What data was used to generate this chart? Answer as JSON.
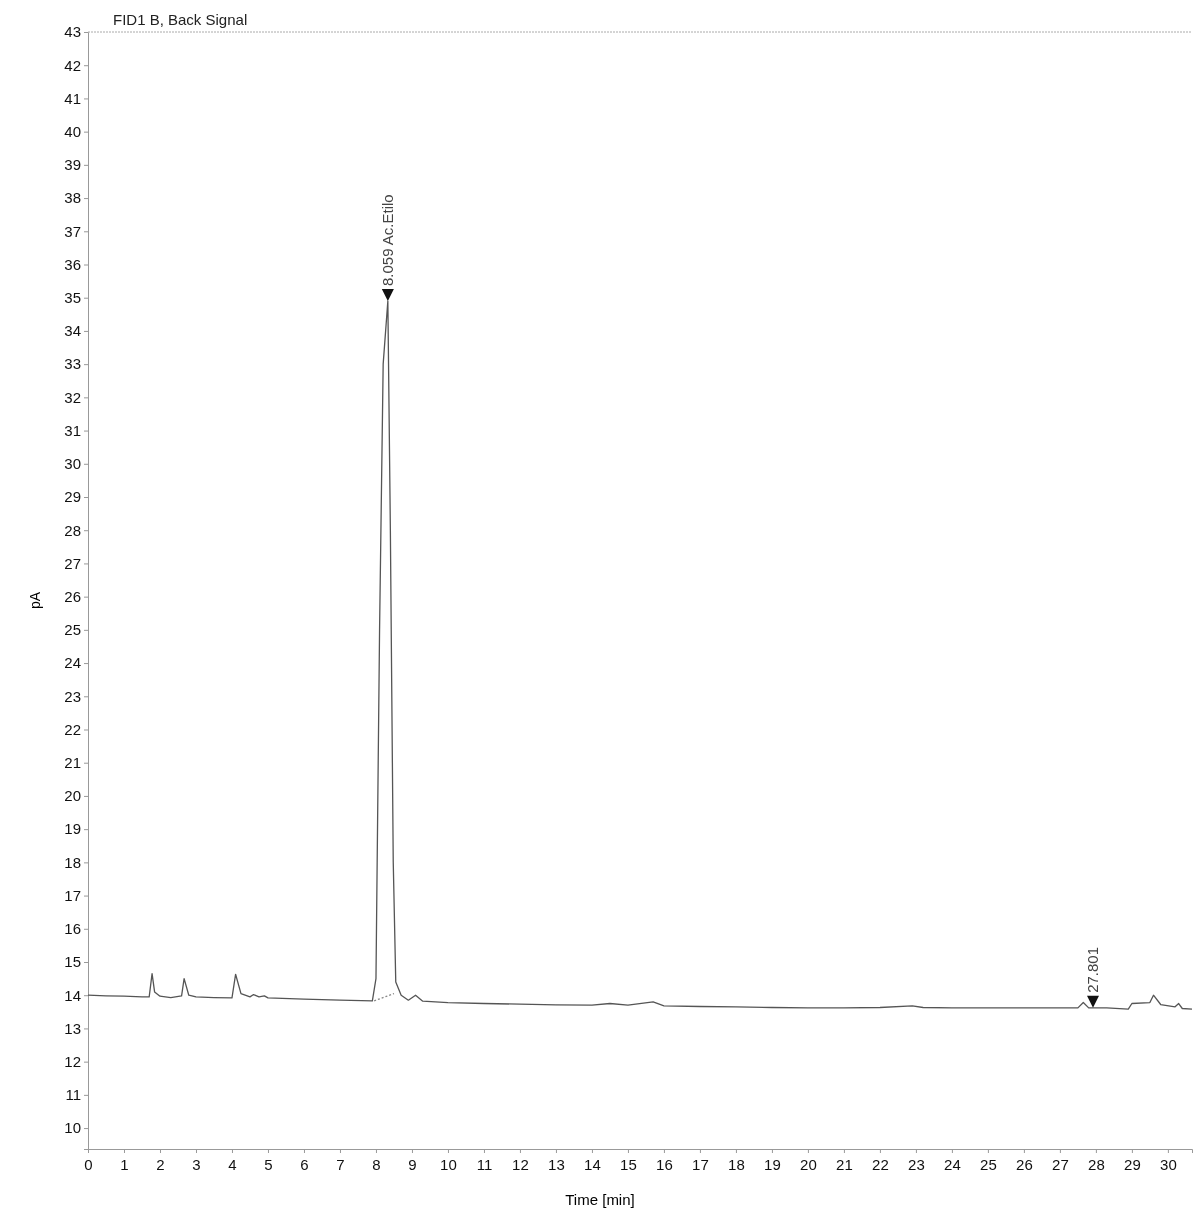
{
  "chart_data": {
    "type": "line",
    "title": "FID1 B, Back Signal",
    "xlabel": "Time [min]",
    "ylabel": "pA",
    "xlim": [
      0,
      30.67
    ],
    "ylim": [
      9.37,
      43
    ],
    "xticks": [
      0,
      1,
      2,
      3,
      4,
      5,
      6,
      7,
      8,
      9,
      10,
      11,
      12,
      13,
      14,
      15,
      16,
      17,
      18,
      19,
      20,
      21,
      22,
      23,
      24,
      25,
      26,
      27,
      28,
      29,
      30
    ],
    "yticks": [
      10,
      11,
      12,
      13,
      14,
      15,
      16,
      17,
      18,
      19,
      20,
      21,
      22,
      23,
      24,
      25,
      26,
      27,
      28,
      29,
      30,
      31,
      32,
      33,
      34,
      35,
      36,
      37,
      38,
      39,
      40,
      41,
      42,
      43
    ],
    "grid": false,
    "series": [
      {
        "color": "#555555",
        "line_style": "solid",
        "x": [
          0,
          0.5,
          1.0,
          1.5,
          1.7,
          1.78,
          1.85,
          2.0,
          2.3,
          2.6,
          2.67,
          2.8,
          3.0,
          3.5,
          4.0,
          4.1,
          4.25,
          4.5,
          4.6,
          4.75,
          4.9,
          5.0,
          6.0,
          7.0,
          7.9,
          8.0,
          8.1,
          8.2,
          8.33,
          8.4,
          8.48,
          8.55,
          8.7,
          8.9,
          9.1,
          9.3,
          10,
          11,
          12,
          13,
          14,
          14.5,
          15,
          15.7,
          16,
          17,
          18,
          19,
          20,
          21,
          22,
          22.9,
          23.2,
          24,
          25,
          26,
          27,
          27.5,
          27.65,
          27.8,
          28.3,
          28.9,
          29.0,
          29.5,
          29.6,
          29.8,
          30.2,
          30.3,
          30.4,
          30.67
        ],
        "values": [
          14.0,
          13.98,
          13.97,
          13.95,
          13.95,
          14.65,
          14.1,
          13.97,
          13.93,
          13.98,
          14.5,
          14.0,
          13.95,
          13.93,
          13.92,
          14.63,
          14.05,
          13.95,
          14.02,
          13.95,
          13.98,
          13.92,
          13.88,
          13.85,
          13.83,
          14.5,
          25,
          33,
          34.9,
          28,
          18,
          14.4,
          14.0,
          13.85,
          14.0,
          13.82,
          13.78,
          13.75,
          13.73,
          13.71,
          13.7,
          13.75,
          13.7,
          13.8,
          13.68,
          13.66,
          13.65,
          13.63,
          13.62,
          13.62,
          13.63,
          13.68,
          13.63,
          13.62,
          13.62,
          13.62,
          13.62,
          13.62,
          13.78,
          13.62,
          13.62,
          13.58,
          13.75,
          13.78,
          14.0,
          13.72,
          13.65,
          13.75,
          13.6,
          13.58
        ]
      },
      {
        "color": "#888888",
        "line_style": "dotted",
        "x": [
          7.95,
          8.5
        ],
        "values": [
          13.83,
          14.05
        ]
      }
    ],
    "annotations": [
      {
        "text": "8.059 Ac.Etilo",
        "x": 8.33,
        "y": 34.9
      },
      {
        "text": "27.801",
        "x": 27.92,
        "y": 13.62
      }
    ]
  }
}
